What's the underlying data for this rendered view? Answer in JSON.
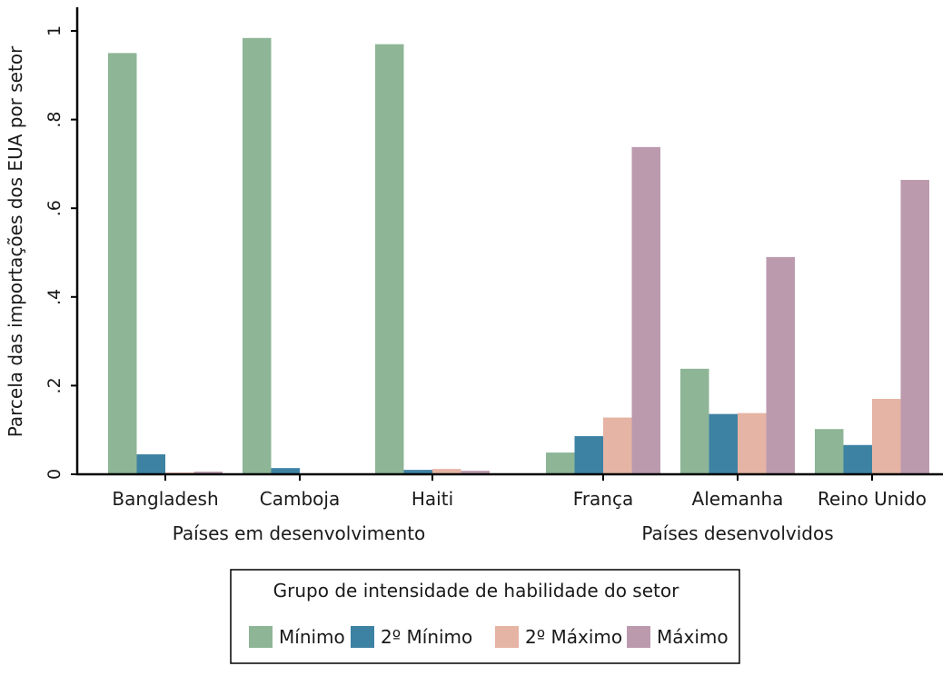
{
  "chart_data": {
    "type": "bar",
    "ylabel": "Parcela das importações dos EUA por setor",
    "ylim": [
      0,
      1
    ],
    "yticks": [
      0,
      0.2,
      0.4,
      0.6,
      0.8,
      1
    ],
    "ytick_labels": [
      "0",
      ".2",
      ".4",
      ".6",
      ".8",
      "1"
    ],
    "grid": false,
    "groups": [
      {
        "label": "Países em desenvolvimento",
        "categories": [
          0,
          1,
          2
        ]
      },
      {
        "label": "Países desenvolvidos",
        "categories": [
          3,
          4,
          5
        ]
      }
    ],
    "categories": [
      "Bangladesh",
      "Camboja",
      "Haiti",
      "França",
      "Alemanha",
      "Reino Unido"
    ],
    "series": [
      {
        "name": "Mínimo",
        "color": "#8db596",
        "values": [
          0.95,
          0.984,
          0.97,
          0.049,
          0.238,
          0.102
        ]
      },
      {
        "name": "2º Mínimo",
        "color": "#3d82a3",
        "values": [
          0.045,
          0.014,
          0.01,
          0.086,
          0.136,
          0.066
        ]
      },
      {
        "name": "2º Máximo",
        "color": "#e6b4a4",
        "values": [
          0.004,
          0.002,
          0.012,
          0.128,
          0.138,
          0.17
        ]
      },
      {
        "name": "Máximo",
        "color": "#bb9aae",
        "values": [
          0.006,
          0.001,
          0.008,
          0.738,
          0.49,
          0.664
        ]
      }
    ],
    "legend": {
      "title": "Grupo de intensidade de habilidade do setor",
      "position": "bottom"
    }
  }
}
